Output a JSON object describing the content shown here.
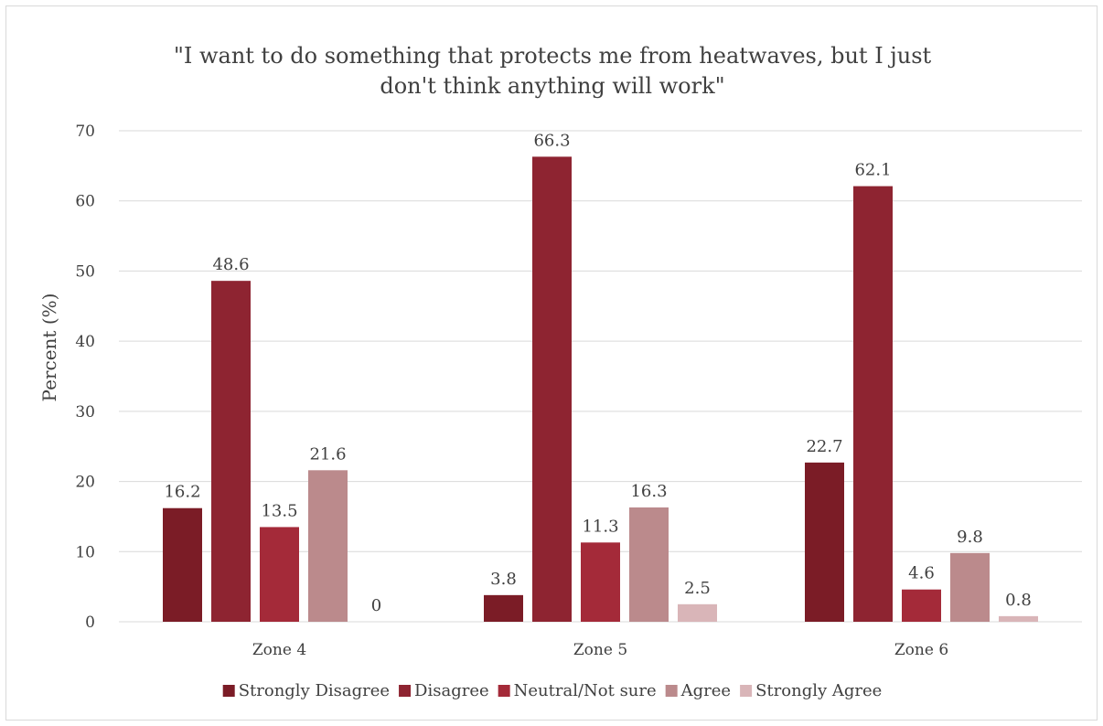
{
  "chart_data": {
    "type": "bar",
    "title_lines": [
      "\"I want to do something that protects me from heatwaves, but I just",
      "don't think anything will work\""
    ],
    "ylabel": "Percent (%)",
    "xlabel": "",
    "ylim": [
      0,
      70
    ],
    "yticks": [
      "0",
      "10",
      "20",
      "30",
      "40",
      "50",
      "60",
      "70"
    ],
    "grid": "horizontal",
    "legend_position": "bottom",
    "categories": [
      "Zone 4",
      "Zone 5",
      "Zone 6"
    ],
    "series": [
      {
        "name": "Strongly Disagree",
        "color": "#7b1c26",
        "values": [
          16.2,
          3.8,
          22.7
        ],
        "labels": [
          "16.2",
          "3.8",
          "22.7"
        ]
      },
      {
        "name": "Disagree",
        "color": "#8e2431",
        "values": [
          48.6,
          66.3,
          62.1
        ],
        "labels": [
          "48.6",
          "66.3",
          "62.1"
        ]
      },
      {
        "name": "Neutral/Not sure",
        "color": "#a42a39",
        "values": [
          13.5,
          11.3,
          4.6
        ],
        "labels": [
          "13.5",
          "11.3",
          "4.6"
        ]
      },
      {
        "name": "Agree",
        "color": "#bb8a8c",
        "values": [
          21.6,
          16.3,
          9.8
        ],
        "labels": [
          "21.6",
          "16.3",
          "9.8"
        ]
      },
      {
        "name": "Strongly Agree",
        "color": "#d9b5b8",
        "values": [
          0,
          2.5,
          0.8
        ],
        "labels": [
          "0",
          "2.5",
          "0.8"
        ]
      }
    ]
  }
}
